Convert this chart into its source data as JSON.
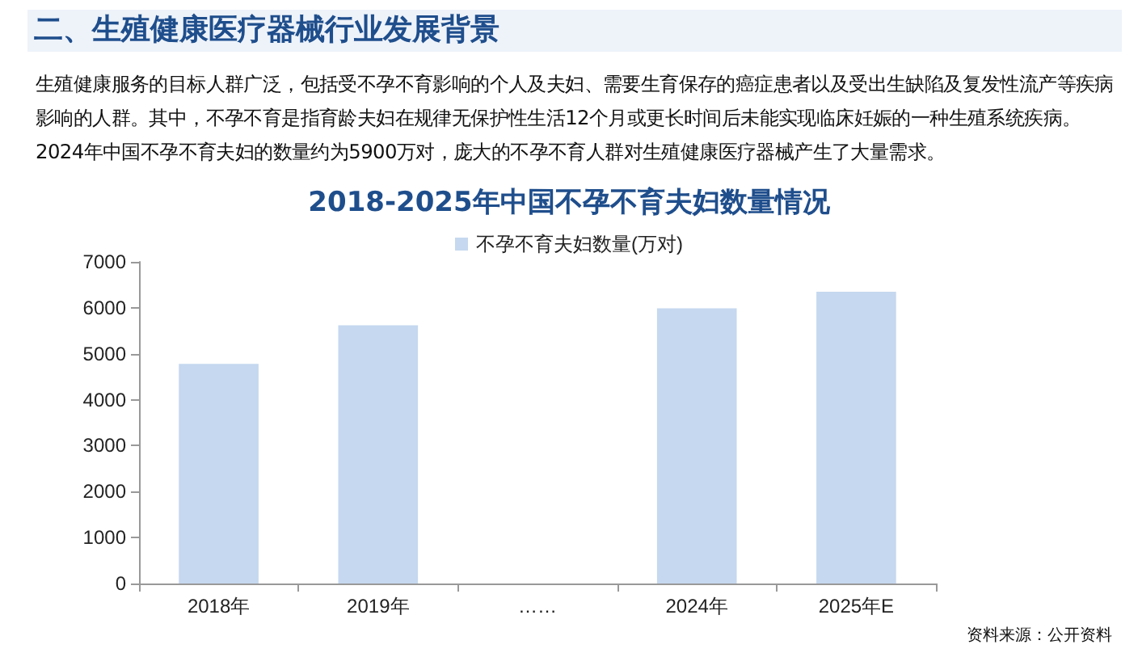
{
  "chart_data": {
    "type": "bar",
    "title": "2018-2025年中国不孕不育夫妇数量情况",
    "subtitle": "二、生殖健康医疗器械行业发展背景",
    "annotations": [
      "生殖健康服务的目标人群广泛，包括受不孕不育影响的个人及夫妇、需要生育保存的癌症患者以及受出生缺陷及复发性流产等疾病影响的人群。其中，不孕不育是指育龄夫妇在规律无保护性生活12个月或更长时间后未能实现临床妊娠的一种生殖系统疾病。2024年中国不孕不育夫妇的数量约为5900万对，庞大的不孕不育人群对生殖健康医疗器械产生了大量需求。",
      "资料来源：公开资料"
    ],
    "categories": [
      "2018年",
      "2019年",
      "……",
      "2024年",
      "2025年E"
    ],
    "series": [
      {
        "name": "不孕不育夫妇数量(万对)",
        "color": "#c5d8ef",
        "values": [
          4780,
          5620,
          null,
          5990,
          6350
        ]
      }
    ],
    "ylim": [
      0,
      7000
    ],
    "yticks": [
      0,
      1000,
      2000,
      3000,
      4000,
      5000,
      6000,
      7000
    ],
    "grid": false,
    "legend": "top"
  }
}
